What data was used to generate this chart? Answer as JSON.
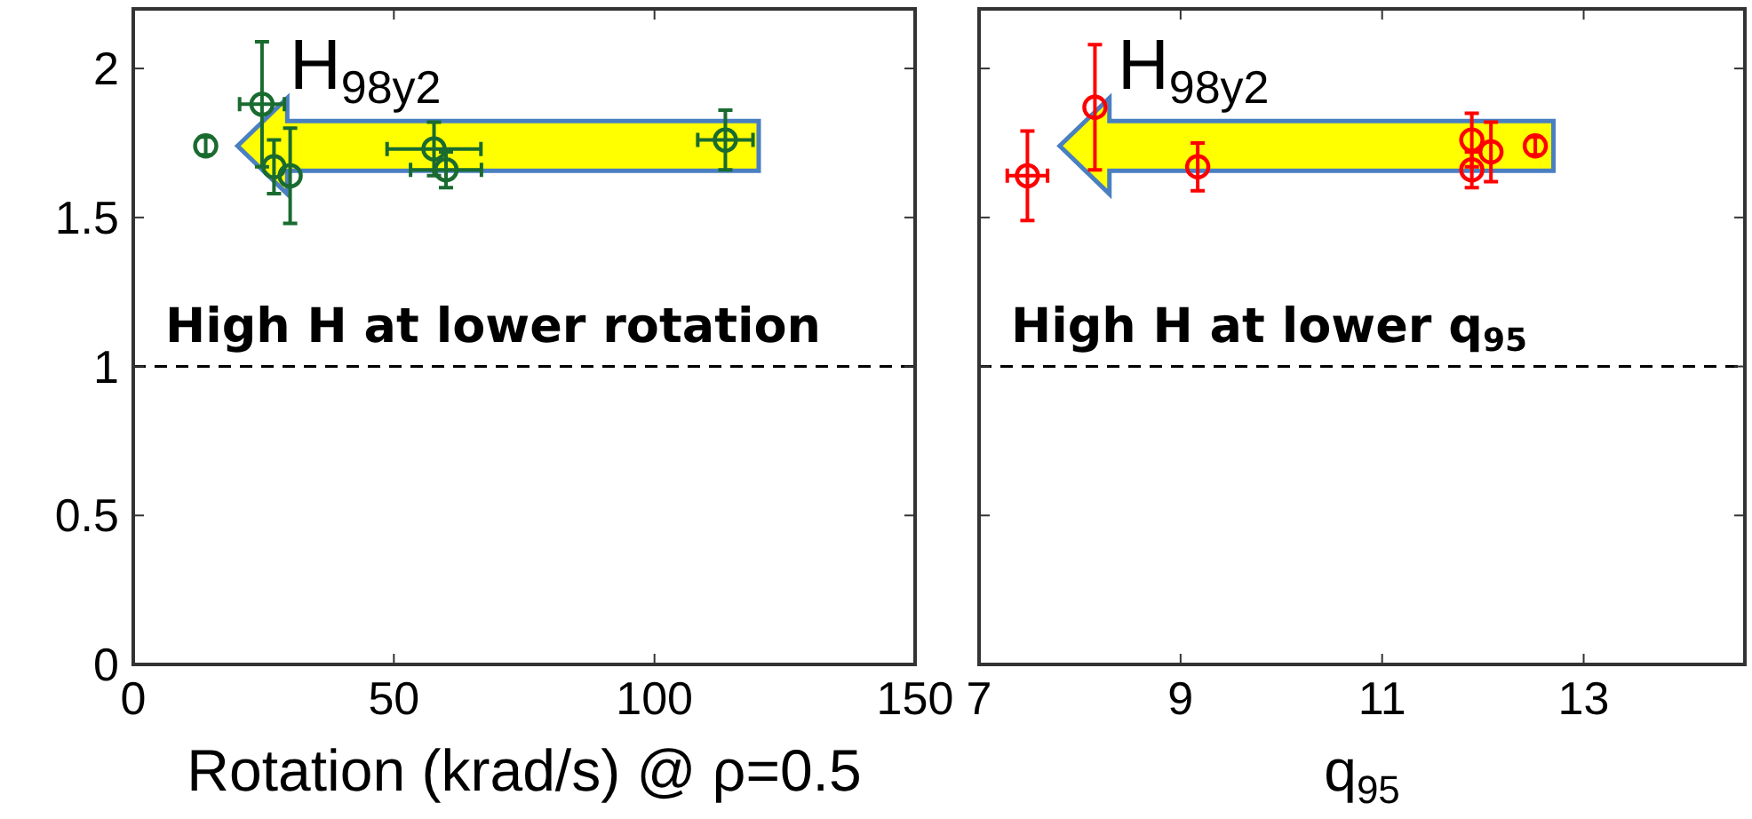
{
  "chart_data": [
    {
      "type": "scatter",
      "xlabel": "Rotation (krad/s) @ ρ=0.5",
      "x": [
        13.9,
        24.7,
        27.0,
        30.1,
        57.7,
        60.0,
        113.6
      ],
      "series": [
        {
          "color": "#1a6b30",
          "values": [
            1.74,
            1.88,
            1.67,
            1.64,
            1.73,
            1.66,
            1.76
          ],
          "errors": [
            0.03,
            0.21,
            0.09,
            0.16,
            0.09,
            0.06,
            0.1
          ],
          "xerrors": [
            null,
            4.3,
            null,
            null,
            9,
            6.8,
            5.3
          ]
        }
      ],
      "xlim": [
        0,
        150
      ],
      "xticks": [
        0,
        50,
        100,
        150
      ],
      "ylim": [
        0,
        2.2
      ],
      "yticks": [
        0,
        0.5,
        1,
        1.5,
        2
      ],
      "marker": "circle",
      "grid": false,
      "ref_lines": [
        {
          "axis": "y",
          "value": 1,
          "color": "#000000",
          "line_style": "dashed"
        }
      ],
      "annotations": [
        "H$_{98y2}$",
        "High H at lower rotation"
      ]
    },
    {
      "type": "scatter",
      "xlabel": "q$_{95}$",
      "x": [
        7.48,
        8.15,
        9.17,
        11.89,
        11.89,
        12.08,
        12.52
      ],
      "series": [
        {
          "color": "#ff0000",
          "values": [
            1.64,
            1.87,
            1.67,
            1.76,
            1.66,
            1.72,
            1.74
          ],
          "errors": [
            0.15,
            0.21,
            0.08,
            0.09,
            0.06,
            0.1,
            0.03
          ],
          "xerrors": [
            0.2,
            null,
            null,
            null,
            null,
            null,
            null
          ]
        }
      ],
      "xlim": [
        7,
        14.6
      ],
      "xticks": [
        7,
        9,
        11,
        13
      ],
      "ylim": [
        0,
        2.2
      ],
      "yticks": [
        0,
        0.5,
        1,
        1.5,
        2
      ],
      "tick_labels": "x",
      "marker": "circle",
      "grid": false,
      "ref_lines": [
        {
          "axis": "y",
          "value": 1,
          "color": "#000000",
          "line_style": "dashed"
        }
      ],
      "annotations": [
        "H$_{98y2}$",
        "High H at lower q$_{95}$"
      ]
    }
  ]
}
